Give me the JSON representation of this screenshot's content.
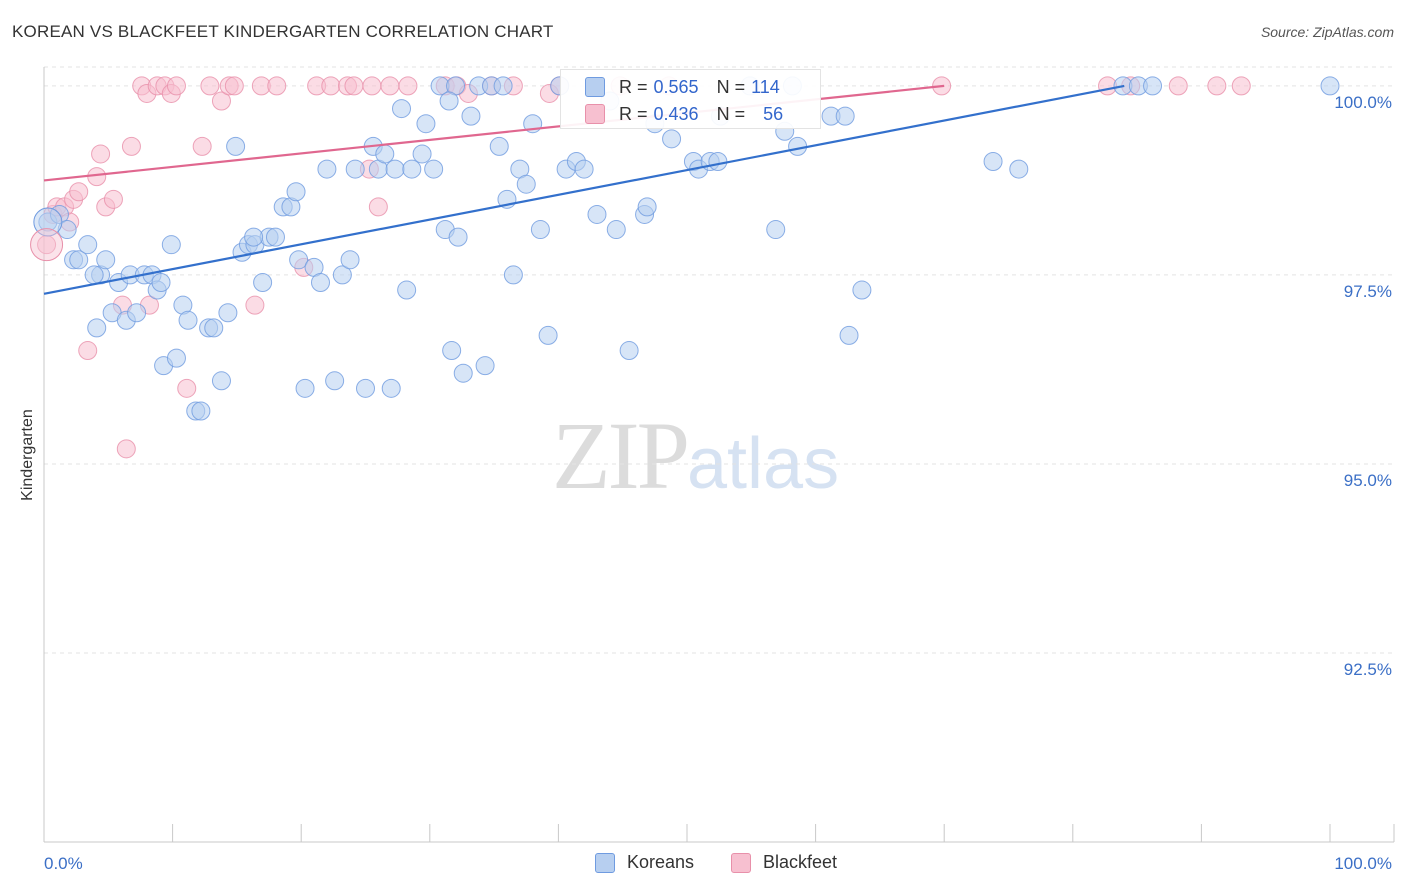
{
  "header": {
    "title": "KOREAN VS BLACKFEET KINDERGARTEN CORRELATION CHART",
    "source": "Source: ZipAtlas.com"
  },
  "watermark": {
    "zip": "ZIP",
    "atlas": "atlas"
  },
  "legend": {
    "korean": {
      "r_label": "R =",
      "r_value": "0.565",
      "n_label": "N =",
      "n_value": "114"
    },
    "blackfeet": {
      "r_label": "R =",
      "r_value": "0.436",
      "n_label": "N =",
      "n_value": "56"
    }
  },
  "bottom_legend": {
    "korean": "Koreans",
    "blackfeet": "Blackfeet"
  },
  "colors": {
    "korean_fill": "#b7cff0",
    "korean_stroke": "#6f9be0",
    "korean_line": "#3370cc",
    "blackfeet_fill": "#f7c0d0",
    "blackfeet_stroke": "#e890aa",
    "blackfeet_line": "#e0678f",
    "grid": "#e3e3e3",
    "tick_text": "#3b6fc6"
  },
  "chart_data": {
    "type": "scatter",
    "title": "KOREAN VS BLACKFEET KINDERGARTEN CORRELATION CHART",
    "xlabel": "",
    "ylabel": "Kindergarten",
    "xlim": [
      0,
      100
    ],
    "ylim": [
      90.0,
      100.25
    ],
    "x_tick_labels": [
      "0.0%",
      "100.0%"
    ],
    "y_ticks": [
      100.0,
      97.5,
      95.0,
      92.5
    ],
    "y_tick_labels": [
      "100.0%",
      "97.5%",
      "95.0%",
      "92.5%"
    ],
    "grid": true,
    "series": [
      {
        "name": "Koreans",
        "trend": {
          "x": [
            0,
            84
          ],
          "y": [
            97.25,
            100.0
          ]
        },
        "points": [
          [
            0.3,
            98.2
          ],
          [
            1.2,
            98.3
          ],
          [
            1.8,
            98.1
          ],
          [
            2.3,
            97.7
          ],
          [
            2.7,
            97.7
          ],
          [
            3.4,
            97.9
          ],
          [
            4.1,
            96.8
          ],
          [
            4.4,
            97.5
          ],
          [
            4.8,
            97.7
          ],
          [
            5.3,
            97.0
          ],
          [
            5.8,
            97.4
          ],
          [
            6.4,
            96.9
          ],
          [
            6.7,
            97.5
          ],
          [
            7.2,
            97.0
          ],
          [
            7.8,
            97.5
          ],
          [
            8.4,
            97.5
          ],
          [
            8.8,
            97.3
          ],
          [
            9.3,
            96.3
          ],
          [
            9.9,
            97.9
          ],
          [
            10.3,
            96.4
          ],
          [
            10.8,
            97.1
          ],
          [
            11.2,
            96.9
          ],
          [
            11.8,
            95.7
          ],
          [
            12.2,
            95.7
          ],
          [
            12.8,
            96.8
          ],
          [
            13.2,
            96.8
          ],
          [
            13.8,
            96.1
          ],
          [
            14.3,
            97.0
          ],
          [
            14.9,
            99.2
          ],
          [
            15.4,
            97.8
          ],
          [
            15.9,
            97.9
          ],
          [
            16.4,
            97.9
          ],
          [
            17.0,
            97.4
          ],
          [
            17.5,
            98.0
          ],
          [
            18.0,
            98.0
          ],
          [
            18.6,
            98.4
          ],
          [
            19.2,
            98.4
          ],
          [
            19.6,
            98.6
          ],
          [
            19.8,
            97.7
          ],
          [
            20.3,
            96.0
          ],
          [
            21.0,
            97.6
          ],
          [
            21.5,
            97.4
          ],
          [
            22.0,
            98.9
          ],
          [
            22.6,
            96.1
          ],
          [
            23.2,
            97.5
          ],
          [
            23.8,
            97.7
          ],
          [
            24.2,
            98.9
          ],
          [
            25.0,
            96.0
          ],
          [
            25.6,
            99.2
          ],
          [
            26.0,
            98.9
          ],
          [
            26.5,
            99.1
          ],
          [
            27.3,
            98.9
          ],
          [
            27.8,
            99.7
          ],
          [
            28.2,
            97.3
          ],
          [
            28.6,
            98.9
          ],
          [
            29.4,
            99.1
          ],
          [
            29.7,
            99.5
          ],
          [
            30.3,
            98.9
          ],
          [
            30.8,
            100.0
          ],
          [
            31.2,
            98.1
          ],
          [
            31.7,
            96.5
          ],
          [
            32.2,
            98.0
          ],
          [
            32.6,
            96.2
          ],
          [
            33.2,
            99.6
          ],
          [
            33.8,
            100.0
          ],
          [
            34.3,
            96.3
          ],
          [
            34.8,
            100.0
          ],
          [
            35.4,
            99.2
          ],
          [
            36.0,
            98.5
          ],
          [
            36.5,
            97.5
          ],
          [
            37.0,
            98.9
          ],
          [
            37.5,
            98.7
          ],
          [
            38.0,
            99.5
          ],
          [
            38.6,
            98.1
          ],
          [
            39.2,
            96.7
          ],
          [
            40.1,
            100.0
          ],
          [
            40.6,
            98.9
          ],
          [
            41.4,
            99.0
          ],
          [
            42.0,
            98.9
          ],
          [
            43.0,
            98.3
          ],
          [
            44.5,
            98.1
          ],
          [
            45.5,
            96.5
          ],
          [
            46.7,
            98.3
          ],
          [
            46.9,
            98.4
          ],
          [
            48.8,
            99.3
          ],
          [
            50.5,
            99.0
          ],
          [
            50.9,
            98.9
          ],
          [
            51.8,
            99.0
          ],
          [
            52.4,
            99.0
          ],
          [
            52.6,
            99.6
          ],
          [
            54.9,
            100.0
          ],
          [
            56.9,
            98.1
          ],
          [
            57.6,
            99.4
          ],
          [
            58.2,
            100.0
          ],
          [
            58.6,
            99.2
          ],
          [
            61.2,
            99.6
          ],
          [
            62.3,
            99.6
          ],
          [
            62.6,
            96.7
          ],
          [
            63.6,
            97.3
          ],
          [
            73.8,
            99.0
          ],
          [
            75.8,
            98.9
          ],
          [
            83.9,
            100.0
          ],
          [
            85.1,
            100.0
          ],
          [
            86.2,
            100.0
          ],
          [
            100.0,
            100.0
          ],
          [
            3.9,
            97.5
          ],
          [
            9.1,
            97.4
          ],
          [
            16.3,
            98.0
          ],
          [
            27.0,
            96.0
          ],
          [
            32.0,
            100.0
          ],
          [
            35.7,
            100.0
          ],
          [
            47.5,
            99.5
          ],
          [
            31.5,
            99.8
          ],
          [
            44.0,
            99.8
          ]
        ]
      },
      {
        "name": "Blackfeet",
        "trend": {
          "x": [
            0,
            70
          ],
          "y": [
            98.75,
            100.0
          ]
        },
        "points": [
          [
            0.2,
            97.9
          ],
          [
            0.7,
            98.3
          ],
          [
            1.0,
            98.4
          ],
          [
            1.6,
            98.4
          ],
          [
            2.3,
            98.5
          ],
          [
            2.7,
            98.6
          ],
          [
            3.4,
            96.5
          ],
          [
            4.1,
            98.8
          ],
          [
            4.4,
            99.1
          ],
          [
            4.8,
            98.4
          ],
          [
            5.4,
            98.5
          ],
          [
            6.1,
            97.1
          ],
          [
            6.4,
            95.2
          ],
          [
            6.8,
            99.2
          ],
          [
            7.6,
            100.0
          ],
          [
            8.0,
            99.9
          ],
          [
            8.2,
            97.1
          ],
          [
            8.8,
            100.0
          ],
          [
            9.4,
            100.0
          ],
          [
            9.9,
            99.9
          ],
          [
            10.3,
            100.0
          ],
          [
            11.1,
            96.0
          ],
          [
            12.3,
            99.2
          ],
          [
            12.9,
            100.0
          ],
          [
            13.8,
            99.8
          ],
          [
            14.4,
            100.0
          ],
          [
            14.8,
            100.0
          ],
          [
            16.4,
            97.1
          ],
          [
            16.9,
            100.0
          ],
          [
            18.1,
            100.0
          ],
          [
            20.2,
            97.6
          ],
          [
            21.2,
            100.0
          ],
          [
            22.3,
            100.0
          ],
          [
            23.6,
            100.0
          ],
          [
            24.1,
            100.0
          ],
          [
            25.5,
            100.0
          ],
          [
            26.0,
            98.4
          ],
          [
            26.9,
            100.0
          ],
          [
            28.3,
            100.0
          ],
          [
            31.2,
            100.0
          ],
          [
            32.1,
            100.0
          ],
          [
            33.0,
            99.9
          ],
          [
            34.8,
            100.0
          ],
          [
            36.5,
            100.0
          ],
          [
            39.3,
            99.9
          ],
          [
            40.1,
            100.0
          ],
          [
            44.8,
            100.0
          ],
          [
            48.6,
            100.0
          ],
          [
            69.8,
            100.0
          ],
          [
            82.7,
            100.0
          ],
          [
            84.5,
            100.0
          ],
          [
            88.2,
            100.0
          ],
          [
            91.2,
            100.0
          ],
          [
            93.1,
            100.0
          ],
          [
            2.0,
            98.2
          ],
          [
            25.3,
            98.9
          ]
        ]
      }
    ]
  }
}
